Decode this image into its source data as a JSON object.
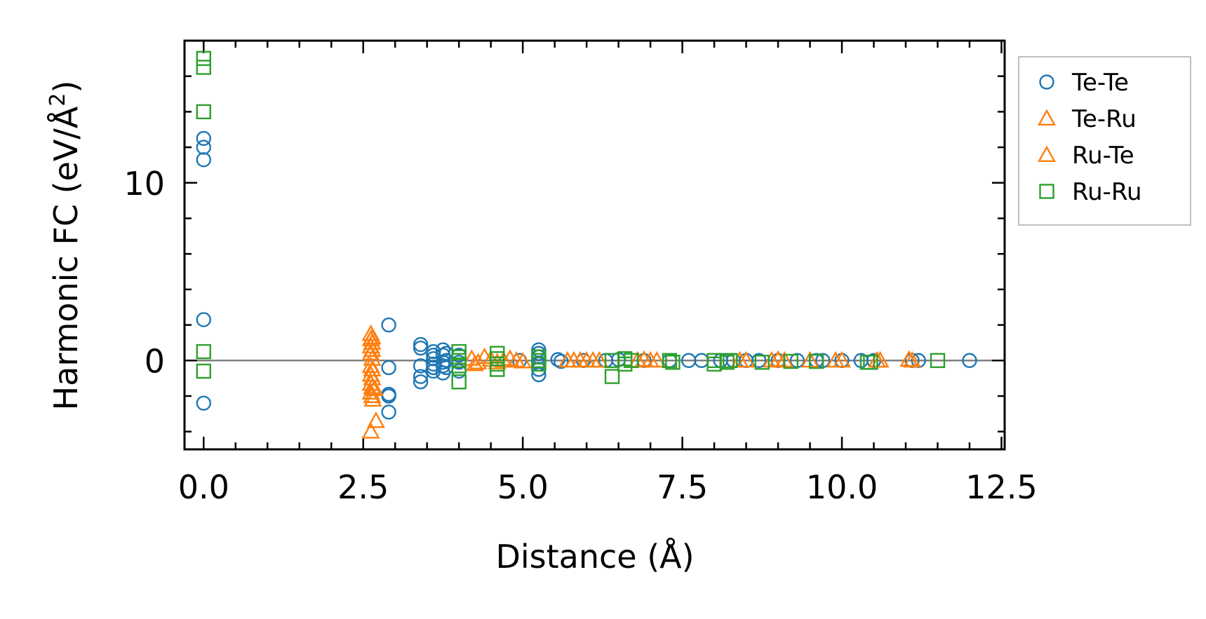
{
  "chart_data": {
    "type": "scatter",
    "title": "",
    "xlabel": "Distance (Å)",
    "ylabel_main": "Harmonic FC (eV/Å",
    "ylabel_sup": "2",
    "ylabel_close": ")",
    "xlim": [
      -0.3,
      12.55
    ],
    "ylim": [
      -5.0,
      18.0
    ],
    "x_ticks": [
      0.0,
      2.5,
      5.0,
      7.5,
      10.0,
      12.5
    ],
    "x_tick_labels": [
      "0.0",
      "2.5",
      "5.0",
      "7.5",
      "10.0",
      "12.5"
    ],
    "y_ticks": [
      0,
      10
    ],
    "y_tick_labels": [
      "0",
      "10"
    ],
    "zero_line": true,
    "legend_position": "outside-right",
    "colors": {
      "blue": "#1f77b4",
      "orange": "#ff7f0e",
      "green": "#2ca02c",
      "zero_line": "#808080"
    },
    "series": [
      {
        "name": "Te-Te",
        "marker": "circle",
        "color": "#1f77b4",
        "points": [
          [
            0.0,
            12.5
          ],
          [
            0.0,
            12.0
          ],
          [
            0.0,
            11.3
          ],
          [
            0.0,
            2.3
          ],
          [
            0.0,
            -2.4
          ],
          [
            2.9,
            2.0
          ],
          [
            2.9,
            -0.4
          ],
          [
            2.9,
            -1.9
          ],
          [
            2.9,
            -2.0
          ],
          [
            2.9,
            -2.9
          ],
          [
            3.4,
            0.9
          ],
          [
            3.4,
            0.7
          ],
          [
            3.4,
            -0.3
          ],
          [
            3.4,
            -0.9
          ],
          [
            3.4,
            -1.2
          ],
          [
            3.6,
            0.5
          ],
          [
            3.6,
            0.3
          ],
          [
            3.6,
            0.1
          ],
          [
            3.6,
            -0.2
          ],
          [
            3.6,
            -0.4
          ],
          [
            3.6,
            -0.6
          ],
          [
            3.75,
            0.6
          ],
          [
            3.75,
            0.3
          ],
          [
            3.75,
            -0.1
          ],
          [
            3.75,
            -0.3
          ],
          [
            3.75,
            -0.7
          ],
          [
            3.8,
            0.4
          ],
          [
            3.8,
            0.0
          ],
          [
            3.8,
            -0.4
          ],
          [
            4.0,
            0.3
          ],
          [
            4.0,
            -0.1
          ],
          [
            4.0,
            -0.6
          ],
          [
            4.95,
            0.0
          ],
          [
            5.25,
            0.6
          ],
          [
            5.25,
            0.4
          ],
          [
            5.25,
            0.2
          ],
          [
            5.25,
            -0.2
          ],
          [
            5.25,
            -0.5
          ],
          [
            5.25,
            -0.8
          ],
          [
            5.55,
            0.05
          ],
          [
            5.6,
            -0.05
          ],
          [
            5.95,
            0.0
          ],
          [
            6.3,
            0.0
          ],
          [
            6.5,
            0.05
          ],
          [
            6.9,
            0.0
          ],
          [
            7.3,
            0.0
          ],
          [
            7.6,
            0.0
          ],
          [
            7.8,
            0.0
          ],
          [
            8.1,
            0.0
          ],
          [
            8.3,
            0.0
          ],
          [
            8.5,
            0.0
          ],
          [
            8.7,
            0.0
          ],
          [
            9.0,
            0.0
          ],
          [
            9.3,
            0.0
          ],
          [
            9.6,
            0.0
          ],
          [
            9.7,
            0.0
          ],
          [
            10.0,
            0.0
          ],
          [
            10.3,
            0.0
          ],
          [
            10.5,
            0.0
          ],
          [
            11.1,
            0.0
          ],
          [
            11.2,
            0.0
          ],
          [
            12.0,
            0.0
          ]
        ]
      },
      {
        "name": "Te-Ru",
        "marker": "triangle",
        "color": "#ff7f0e",
        "points": [
          [
            2.62,
            1.5
          ],
          [
            2.62,
            1.2
          ],
          [
            2.62,
            0.8
          ],
          [
            2.62,
            0.4
          ],
          [
            2.62,
            -0.3
          ],
          [
            2.62,
            -0.8
          ],
          [
            2.62,
            -1.3
          ],
          [
            2.62,
            -1.8
          ],
          [
            2.65,
            -2.2
          ],
          [
            2.62,
            -4.0
          ],
          [
            2.7,
            -3.4
          ],
          [
            4.2,
            0.1
          ],
          [
            4.3,
            -0.1
          ],
          [
            4.5,
            0.05
          ],
          [
            4.7,
            0.0
          ],
          [
            4.9,
            0.0
          ],
          [
            5.8,
            0.0
          ],
          [
            6.0,
            0.0
          ],
          [
            6.1,
            0.0
          ],
          [
            6.9,
            0.05
          ],
          [
            7.1,
            0.0
          ],
          [
            8.4,
            0.0
          ],
          [
            8.9,
            0.0
          ],
          [
            9.1,
            0.0
          ],
          [
            9.9,
            0.0
          ],
          [
            10.6,
            0.0
          ],
          [
            11.05,
            0.05
          ]
        ]
      },
      {
        "name": "Ru-Te",
        "marker": "triangle",
        "color": "#ff7f0e",
        "points": [
          [
            2.64,
            1.3
          ],
          [
            2.64,
            1.0
          ],
          [
            2.64,
            0.6
          ],
          [
            2.64,
            0.1
          ],
          [
            2.64,
            -0.5
          ],
          [
            2.64,
            -1.0
          ],
          [
            2.64,
            -1.5
          ],
          [
            2.64,
            -2.0
          ],
          [
            2.68,
            -1.6
          ],
          [
            4.25,
            -0.2
          ],
          [
            4.4,
            0.2
          ],
          [
            4.6,
            -0.1
          ],
          [
            4.8,
            0.1
          ],
          [
            5.0,
            -0.05
          ],
          [
            5.7,
            0.0
          ],
          [
            5.9,
            0.0
          ],
          [
            6.2,
            0.0
          ],
          [
            6.8,
            0.0
          ],
          [
            7.0,
            0.0
          ],
          [
            8.5,
            0.0
          ],
          [
            9.0,
            0.05
          ],
          [
            9.5,
            0.0
          ],
          [
            10.0,
            0.0
          ],
          [
            10.55,
            0.0
          ],
          [
            11.1,
            0.0
          ]
        ]
      },
      {
        "name": "Ru-Ru",
        "marker": "square",
        "color": "#2ca02c",
        "points": [
          [
            0.0,
            17.0
          ],
          [
            0.0,
            16.5
          ],
          [
            0.0,
            14.0
          ],
          [
            0.0,
            0.5
          ],
          [
            0.0,
            -0.6
          ],
          [
            4.0,
            0.5
          ],
          [
            4.0,
            0.2
          ],
          [
            4.0,
            0.0
          ],
          [
            4.0,
            -0.3
          ],
          [
            4.0,
            -1.2
          ],
          [
            4.6,
            0.4
          ],
          [
            4.6,
            0.1
          ],
          [
            4.6,
            -0.2
          ],
          [
            4.6,
            -0.5
          ],
          [
            5.25,
            0.2
          ],
          [
            5.25,
            0.0
          ],
          [
            5.25,
            -0.2
          ],
          [
            6.4,
            0.0
          ],
          [
            6.4,
            -0.9
          ],
          [
            6.6,
            0.1
          ],
          [
            6.6,
            -0.2
          ],
          [
            6.7,
            0.0
          ],
          [
            7.3,
            0.0
          ],
          [
            7.35,
            -0.1
          ],
          [
            8.0,
            0.0
          ],
          [
            8.0,
            -0.2
          ],
          [
            8.2,
            -0.1
          ],
          [
            8.25,
            0.0
          ],
          [
            8.75,
            -0.1
          ],
          [
            9.2,
            -0.05
          ],
          [
            9.6,
            -0.05
          ],
          [
            10.4,
            -0.1
          ],
          [
            10.45,
            -0.1
          ],
          [
            11.5,
            0.0
          ]
        ]
      }
    ]
  }
}
